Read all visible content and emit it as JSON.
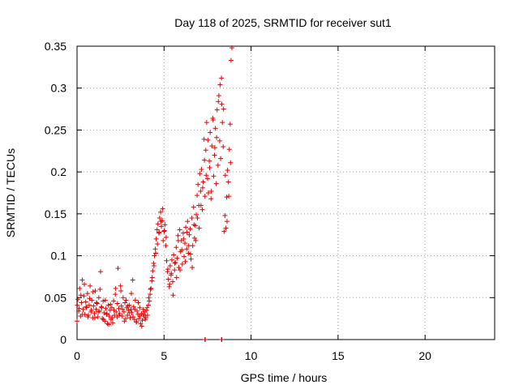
{
  "chart_data": {
    "type": "scatter",
    "title": "Day 118 of 2025, SRMTID for receiver sut1",
    "xlabel": "GPS time / hours",
    "ylabel": "SRMTID / TECUs",
    "xlim": [
      0,
      24
    ],
    "ylim": [
      0,
      0.35
    ],
    "xticks": [
      0,
      5,
      10,
      15,
      20
    ],
    "yticks": [
      0,
      0.05,
      0.1,
      0.15,
      0.2,
      0.25,
      0.3,
      0.35
    ],
    "x_tick_labels": [
      "0",
      "5",
      "10",
      "15",
      "20"
    ],
    "y_tick_labels": [
      "0",
      "0.05",
      "0.1",
      "0.15",
      "0.2",
      "0.25",
      "0.3",
      "0.35"
    ],
    "grid": true,
    "marker": "+",
    "marker_color": "#e60000",
    "series": [
      {
        "x": [
          0.0,
          0.05,
          0.1,
          0.15,
          0.2,
          0.25,
          0.3,
          0.35,
          0.4,
          0.45,
          0.5,
          0.55,
          0.6,
          0.65,
          0.7,
          0.75,
          0.8,
          0.85,
          0.9,
          0.95,
          1.0,
          1.05,
          1.1,
          1.15,
          1.2,
          1.25,
          1.3,
          1.35,
          1.4,
          1.45,
          1.5,
          1.55,
          1.6,
          1.65,
          1.7,
          1.75,
          1.8,
          1.85,
          1.9,
          1.95,
          2.0,
          2.05,
          2.1,
          2.15,
          2.2,
          2.25,
          2.3,
          2.35,
          2.4,
          2.45,
          2.5,
          2.55,
          2.6,
          2.65,
          2.7,
          2.75,
          2.8,
          2.85,
          2.9,
          2.95,
          3.0,
          3.05,
          3.1,
          3.15,
          3.2,
          3.25,
          3.3,
          3.35,
          3.4,
          3.45,
          3.5,
          3.55,
          3.6,
          3.65,
          3.7,
          3.75,
          3.8,
          3.85,
          3.9,
          3.95,
          4.0,
          4.05,
          4.1,
          4.15,
          4.2,
          4.25,
          4.3,
          4.35,
          4.4,
          4.45,
          4.5,
          4.55,
          4.6,
          4.65,
          4.7,
          4.75,
          4.8,
          4.85,
          4.9,
          4.95,
          5.0,
          5.05,
          5.1,
          5.15,
          5.2,
          5.25,
          5.3,
          5.35,
          5.4,
          5.45,
          5.5,
          5.55,
          5.6,
          5.65,
          5.7,
          5.75,
          5.8,
          5.85,
          5.9,
          5.95,
          6.0,
          6.05,
          6.1,
          6.15,
          6.2,
          6.25,
          6.3,
          6.35,
          6.4,
          6.45,
          6.5,
          6.55,
          6.6,
          6.65,
          6.7,
          6.75,
          6.8,
          6.85,
          6.9,
          6.95,
          7.0,
          7.05,
          7.1,
          7.15,
          7.2,
          7.25,
          7.3,
          7.35,
          7.4,
          7.45,
          7.5,
          7.55,
          7.6,
          7.65,
          7.7,
          7.75,
          7.8,
          7.85,
          7.9,
          7.95,
          8.0,
          8.05,
          8.1,
          8.15,
          8.2,
          8.25,
          8.3,
          8.35,
          8.4,
          8.45,
          8.5,
          8.55,
          8.6,
          8.65,
          8.7,
          8.75,
          8.8,
          8.85,
          8.9,
          0.02,
          0.12,
          0.22,
          0.32,
          0.42,
          0.52,
          0.62,
          0.72,
          0.82,
          0.92,
          1.02,
          1.12,
          1.22,
          1.32,
          1.42,
          1.52,
          1.62,
          1.72,
          1.82,
          1.92,
          2.02,
          2.12,
          2.22,
          2.32,
          2.42,
          2.52,
          2.62,
          2.72,
          2.82,
          2.92,
          3.02,
          3.12,
          3.22,
          3.32,
          3.42,
          3.52,
          3.62,
          3.72,
          3.82,
          3.92,
          4.02,
          4.12,
          4.22,
          4.32,
          4.42,
          4.52,
          4.62,
          4.72,
          4.82,
          4.92,
          5.02,
          5.12,
          5.22,
          5.32,
          5.42,
          5.52,
          5.62,
          5.72,
          5.82,
          5.92,
          6.02,
          6.12,
          6.22,
          6.32,
          6.42,
          6.52,
          6.62,
          6.72,
          6.82,
          6.92,
          7.02,
          7.12,
          7.22,
          7.32,
          7.42,
          7.52,
          7.62,
          7.72,
          7.82,
          7.92,
          8.02,
          8.12,
          8.22,
          8.32,
          8.42,
          8.52,
          8.62,
          8.72,
          8.82,
          7.35,
          7.37,
          8.3,
          8.32
        ],
        "y": [
          0.022,
          0.048,
          0.034,
          0.061,
          0.028,
          0.044,
          0.071,
          0.036,
          0.052,
          0.03,
          0.045,
          0.038,
          0.055,
          0.029,
          0.041,
          0.064,
          0.033,
          0.047,
          0.026,
          0.04,
          0.031,
          0.058,
          0.036,
          0.043,
          0.027,
          0.05,
          0.034,
          0.081,
          0.039,
          0.025,
          0.046,
          0.032,
          0.022,
          0.037,
          0.03,
          0.019,
          0.041,
          0.028,
          0.035,
          0.024,
          0.038,
          0.02,
          0.046,
          0.029,
          0.054,
          0.033,
          0.027,
          0.085,
          0.037,
          0.031,
          0.064,
          0.04,
          0.028,
          0.05,
          0.033,
          0.044,
          0.025,
          0.038,
          0.029,
          0.035,
          0.041,
          0.026,
          0.036,
          0.032,
          0.071,
          0.039,
          0.024,
          0.047,
          0.021,
          0.034,
          0.03,
          0.025,
          0.038,
          0.019,
          0.031,
          0.023,
          0.036,
          0.028,
          0.033,
          0.026,
          0.035,
          0.029,
          0.041,
          0.046,
          0.054,
          0.061,
          0.07,
          0.082,
          0.091,
          0.1,
          0.108,
          0.12,
          0.131,
          0.138,
          0.127,
          0.145,
          0.152,
          0.135,
          0.142,
          0.118,
          0.129,
          0.137,
          0.112,
          0.094,
          0.081,
          0.072,
          0.063,
          0.088,
          0.077,
          0.095,
          0.069,
          0.101,
          0.083,
          0.092,
          0.11,
          0.097,
          0.124,
          0.086,
          0.131,
          0.105,
          0.118,
          0.09,
          0.127,
          0.099,
          0.115,
          0.134,
          0.108,
          0.141,
          0.103,
          0.125,
          0.132,
          0.096,
          0.145,
          0.112,
          0.158,
          0.121,
          0.136,
          0.149,
          0.172,
          0.185,
          0.16,
          0.198,
          0.177,
          0.203,
          0.155,
          0.188,
          0.239,
          0.171,
          0.226,
          0.259,
          0.192,
          0.175,
          0.213,
          0.247,
          0.168,
          0.231,
          0.264,
          0.195,
          0.22,
          0.252,
          0.186,
          0.274,
          0.208,
          0.291,
          0.237,
          0.216,
          0.312,
          0.259,
          0.23,
          0.129,
          0.148,
          0.133,
          0.17,
          0.202,
          0.188,
          0.227,
          0.257,
          0.333,
          0.348,
          0.041,
          0.037,
          0.053,
          0.03,
          0.066,
          0.039,
          0.027,
          0.049,
          0.035,
          0.057,
          0.026,
          0.044,
          0.033,
          0.06,
          0.038,
          0.024,
          0.047,
          0.031,
          0.018,
          0.042,
          0.026,
          0.035,
          0.061,
          0.043,
          0.029,
          0.058,
          0.036,
          0.022,
          0.047,
          0.04,
          0.032,
          0.055,
          0.027,
          0.036,
          0.021,
          0.044,
          0.028,
          0.016,
          0.03,
          0.024,
          0.038,
          0.05,
          0.06,
          0.074,
          0.088,
          0.103,
          0.114,
          0.128,
          0.141,
          0.156,
          0.13,
          0.122,
          0.084,
          0.066,
          0.079,
          0.053,
          0.091,
          0.074,
          0.118,
          0.083,
          0.107,
          0.12,
          0.093,
          0.128,
          0.112,
          0.102,
          0.086,
          0.137,
          0.118,
          0.145,
          0.133,
          0.16,
          0.181,
          0.214,
          0.196,
          0.238,
          0.205,
          0.177,
          0.262,
          0.229,
          0.241,
          0.284,
          0.304,
          0.281,
          0.275,
          0.196,
          0.141,
          0.171,
          0.211,
          0.0,
          0.0,
          0.0,
          0.0
        ]
      }
    ]
  }
}
